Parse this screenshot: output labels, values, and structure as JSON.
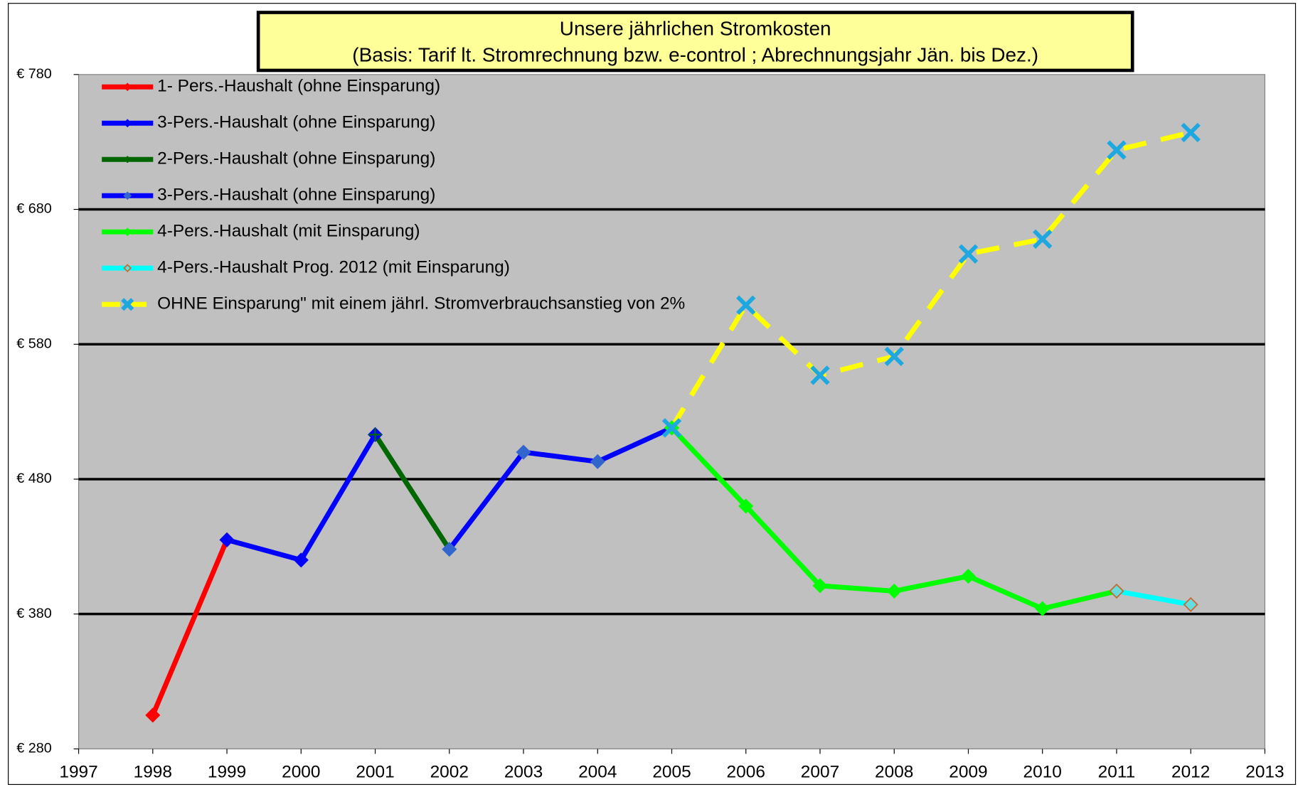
{
  "chart_data": {
    "type": "line",
    "title": "Unsere  jährlichen Stromkosten",
    "subtitle": "(Basis: Tarif lt. Stromrechnung bzw. e-control ;  Abrechnungsjahr Jän. bis Dez.)",
    "xlim": [
      1997,
      2013
    ],
    "xticks": [
      1997,
      1998,
      1999,
      2000,
      2001,
      2002,
      2003,
      2004,
      2005,
      2006,
      2007,
      2008,
      2009,
      2010,
      2011,
      2012,
      2013
    ],
    "ylim": [
      280,
      780
    ],
    "yticks": [
      {
        "value": 280,
        "label": "€ 280"
      },
      {
        "value": 380,
        "label": "€ 380"
      },
      {
        "value": 480,
        "label": "€ 480"
      },
      {
        "value": 580,
        "label": "€ 580"
      },
      {
        "value": 680,
        "label": "€ 680"
      },
      {
        "value": 780,
        "label": "€ 780"
      }
    ],
    "grid": true,
    "legend": "upper left",
    "series": [
      {
        "name": "1- Pers.-Haushalt (ohne Einsparung)",
        "color": "#ff0000",
        "marker": "diamond",
        "marker_color": "#ff0000",
        "x": [
          1998,
          1999
        ],
        "values": [
          305,
          435
        ]
      },
      {
        "name": "3-Pers.-Haushalt (ohne Einsparung)",
        "color": "#0000ff",
        "marker": "diamond",
        "marker_color": "#0000ff",
        "x": [
          1999,
          2000,
          2001
        ],
        "values": [
          435,
          420,
          513
        ]
      },
      {
        "name": "2-Pers.-Haushalt (ohne Einsparung)",
        "color": "#006600",
        "marker": "plus",
        "marker_color": "#006600",
        "x": [
          2001,
          2002
        ],
        "values": [
          513,
          428
        ]
      },
      {
        "name": "3-Pers.-Haushalt (ohne Einsparung)",
        "color": "#0000ff",
        "marker": "diamond",
        "marker_color": "#3366cc",
        "x": [
          2002,
          2003,
          2004,
          2005
        ],
        "values": [
          428,
          500,
          493,
          518
        ]
      },
      {
        "name": "4-Pers.-Haushalt (mit Einsparung)",
        "color": "#00ff00",
        "marker": "diamond",
        "marker_color": "#00ff00",
        "x": [
          2005,
          2006,
          2007,
          2008,
          2009,
          2010,
          2011
        ],
        "values": [
          518,
          460,
          401,
          397,
          408,
          384,
          397
        ]
      },
      {
        "name": "4-Pers.-Haushalt Prog. 2012 (mit Einsparung)",
        "color": "#00ffff",
        "marker": "diamond",
        "marker_color": "#66dddd",
        "marker_edge": "#cc6633",
        "x": [
          2011,
          2012
        ],
        "values": [
          397,
          387
        ]
      },
      {
        "name": "OHNE Einsparung\" mit einem jährl. Stromverbrauchsanstieg von 2%",
        "color": "#ffff00",
        "dash": true,
        "marker": "x",
        "marker_color": "#1fa8e0",
        "x": [
          2005,
          2006,
          2007,
          2008,
          2009,
          2010,
          2011,
          2012
        ],
        "values": [
          518,
          609,
          557,
          571,
          647,
          658,
          724,
          737
        ]
      }
    ]
  }
}
